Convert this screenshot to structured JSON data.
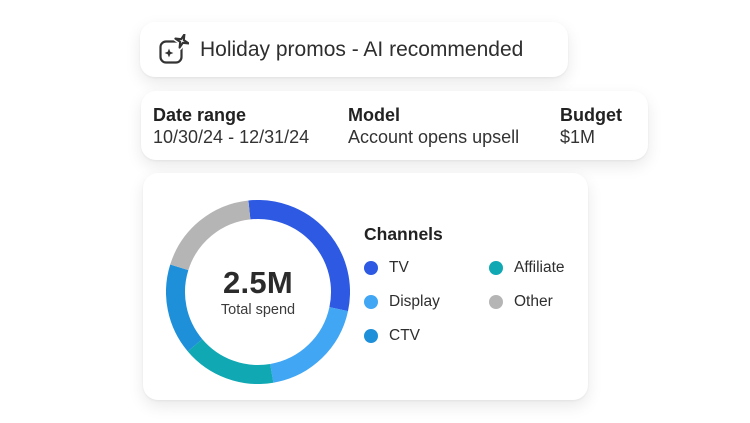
{
  "title_card": {
    "title": "Holiday promos - AI recommended",
    "icon": "ai-generate-sparkle"
  },
  "summary": {
    "fields": [
      {
        "label": "Date range",
        "value": "10/30/24 - 12/31/24"
      },
      {
        "label": "Model",
        "value": "Account opens upsell"
      },
      {
        "label": "Budget",
        "value": "$1M"
      }
    ]
  },
  "donut_card": {
    "center_value": "2.5M",
    "center_label": "Total spend",
    "legend_title": "Channels",
    "legend": [
      {
        "label": "TV",
        "color": "#2D59E3"
      },
      {
        "label": "Display",
        "color": "#41A6F4"
      },
      {
        "label": "CTV",
        "color": "#1E90D9"
      },
      {
        "label": "Affiliate",
        "color": "#10A8B3"
      },
      {
        "label": "Other",
        "color": "#B5B5B5"
      }
    ]
  },
  "chart_data": {
    "type": "pie",
    "variant": "donut",
    "title": "Channels",
    "center_value": "2.5M",
    "center_label": "Total spend",
    "start_angle_deg": -6,
    "legend_position": "right",
    "segments": [
      {
        "label": "TV",
        "percent": 30.0,
        "color": "#2D59E3"
      },
      {
        "label": "Display",
        "percent": 19.0,
        "color": "#41A6F4"
      },
      {
        "label": "Affiliate",
        "percent": 16.5,
        "color": "#10A8B3"
      },
      {
        "label": "CTV",
        "percent": 16.0,
        "color": "#1E90D9"
      },
      {
        "label": "Other",
        "percent": 18.5,
        "color": "#B5B5B5"
      }
    ]
  }
}
